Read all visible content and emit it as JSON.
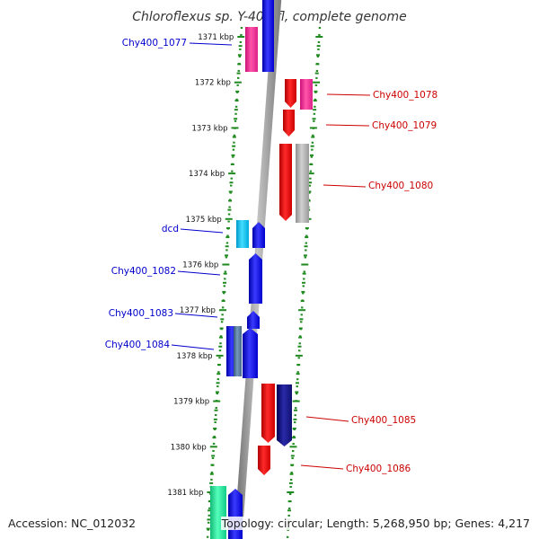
{
  "title": "Chloroflexus sp. Y-400-fl, complete genome",
  "accession_text": "Accession: NC_012032",
  "topology_text": "Topology: circular; Length: 5,268,950 bp; Genes: 4,217",
  "ticks": [
    "1371 kbp",
    "1372 kbp",
    "1373 kbp",
    "1374 kbp",
    "1375 kbp",
    "1376 kbp",
    "1377 kbp",
    "1378 kbp",
    "1379 kbp",
    "1380 kbp",
    "1381 kbp"
  ],
  "colors": {
    "backbone": "#8c8c8c",
    "tick_green": "#1f8a1f",
    "forward_label": "#0000cc",
    "reverse_label": "#cc0000",
    "blue": "#1a1aff",
    "red": "#ff0000",
    "pink": "#ff3399",
    "cyan": "#22ccff",
    "gray": "#b0b0b0",
    "teal": "#22ee99",
    "steel": "#557799",
    "navy": "#1a1a88"
  },
  "genes": [
    {
      "label": "Chy400_1077",
      "strand": "forward",
      "color": "pink"
    },
    {
      "label": "Chy400_1078",
      "strand": "reverse",
      "color": "pink"
    },
    {
      "label": "Chy400_1079",
      "strand": "reverse",
      "color": "red"
    },
    {
      "label": "Chy400_1080",
      "strand": "reverse",
      "color": "gray"
    },
    {
      "label": "dcd",
      "strand": "forward",
      "color": "cyan"
    },
    {
      "label": "Chy400_1082",
      "strand": "forward",
      "color": "blue"
    },
    {
      "label": "Chy400_1083",
      "strand": "forward",
      "color": "blue"
    },
    {
      "label": "Chy400_1084",
      "strand": "forward",
      "color": "steel"
    },
    {
      "label": "Chy400_1085",
      "strand": "reverse",
      "color": "navy"
    },
    {
      "label": "Chy400_1086",
      "strand": "reverse",
      "color": "red"
    }
  ]
}
